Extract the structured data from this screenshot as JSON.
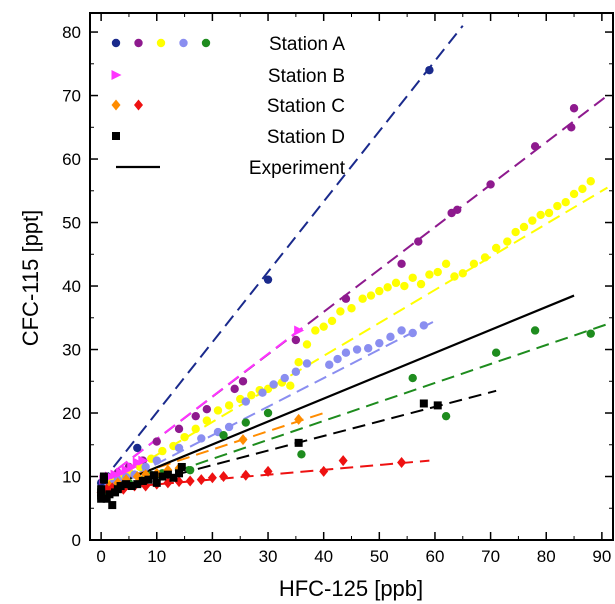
{
  "chart_data": {
    "type": "scatter",
    "xlabel": "HFC-125 [ppb]",
    "ylabel": "CFC-115 [ppt]",
    "xlim": [
      -2,
      92
    ],
    "ylim": [
      0,
      83
    ],
    "xticks": [
      0,
      10,
      20,
      30,
      40,
      50,
      60,
      70,
      80,
      90
    ],
    "yticks": [
      0,
      10,
      20,
      30,
      40,
      50,
      60,
      70,
      80
    ],
    "grid": false,
    "legend": {
      "placement": "top-left",
      "entries": [
        "Station A",
        "Station B",
        "Station C",
        "Station D",
        "Experiment"
      ]
    },
    "colors": {
      "navy": "#1a2a8c",
      "purple": "#8e1a8e",
      "yellow": "#ffff00",
      "lavender": "#8a8ef0",
      "green": "#1e8c1e",
      "magenta": "#ff33ff",
      "orange": "#ff8c00",
      "red": "#ee1111",
      "black": "#000000"
    },
    "series": [
      {
        "name": "Station A",
        "color": "navy",
        "marker": "circle",
        "points": [
          [
            0,
            9
          ],
          [
            0.5,
            8.5
          ],
          [
            1,
            9.5
          ],
          [
            6.5,
            14.5
          ],
          [
            30,
            41
          ],
          [
            59,
            74
          ]
        ],
        "fit": [
          [
            0,
            9
          ],
          [
            65,
            81
          ]
        ]
      },
      {
        "name": "Station A",
        "color": "purple",
        "marker": "circle",
        "points": [
          [
            1,
            9.5
          ],
          [
            2,
            9.8
          ],
          [
            3,
            10.6
          ],
          [
            5,
            11.5
          ],
          [
            7.5,
            12.5
          ],
          [
            10,
            15.5
          ],
          [
            14,
            17.5
          ],
          [
            17,
            19.5
          ],
          [
            19,
            20.6
          ],
          [
            24,
            23.8
          ],
          [
            25.5,
            25
          ],
          [
            35,
            31.5
          ],
          [
            44,
            38
          ],
          [
            54,
            43.5
          ],
          [
            57,
            47
          ],
          [
            63,
            51.5
          ],
          [
            64,
            52
          ],
          [
            70,
            56
          ],
          [
            78,
            62
          ],
          [
            84.5,
            65
          ],
          [
            85,
            68
          ]
        ],
        "fit": [
          [
            0,
            9.2
          ],
          [
            91,
            70
          ]
        ]
      },
      {
        "name": "Station A",
        "color": "yellow",
        "marker": "circle",
        "points": [
          [
            2,
            9.2
          ],
          [
            3.5,
            10
          ],
          [
            5,
            10.8
          ],
          [
            7,
            11.5
          ],
          [
            9,
            12.8
          ],
          [
            11,
            14
          ],
          [
            13,
            14.8
          ],
          [
            15,
            16.2
          ],
          [
            17,
            17.5
          ],
          [
            19,
            18.8
          ],
          [
            21,
            20.4
          ],
          [
            23,
            21.2
          ],
          [
            25,
            22.2
          ],
          [
            27,
            22.8
          ],
          [
            28.5,
            23.6
          ],
          [
            30,
            23.8
          ],
          [
            31,
            24.4
          ],
          [
            32.5,
            24.8
          ],
          [
            34,
            24.3
          ],
          [
            35.5,
            28
          ],
          [
            37,
            30.8
          ],
          [
            38.5,
            33
          ],
          [
            40,
            33.6
          ],
          [
            41.5,
            34.5
          ],
          [
            43,
            36
          ],
          [
            45,
            36.5
          ],
          [
            47,
            38
          ],
          [
            48.5,
            38.5
          ],
          [
            50,
            39.2
          ],
          [
            51.5,
            39.8
          ],
          [
            53,
            40.5
          ],
          [
            54.5,
            40
          ],
          [
            56,
            41.3
          ],
          [
            57.5,
            40.3
          ],
          [
            59,
            41.8
          ],
          [
            60.5,
            42.2
          ],
          [
            62,
            43.5
          ],
          [
            63.5,
            41.5
          ],
          [
            65,
            42
          ],
          [
            67,
            43.5
          ],
          [
            69,
            44.5
          ],
          [
            71,
            46
          ],
          [
            73,
            47
          ],
          [
            74.5,
            48.5
          ],
          [
            76,
            49.3
          ],
          [
            77.5,
            50.3
          ],
          [
            79,
            51.2
          ],
          [
            80.5,
            51.5
          ],
          [
            82,
            52.6
          ],
          [
            83.5,
            53.2
          ],
          [
            85,
            54.5
          ],
          [
            86.5,
            55.3
          ],
          [
            88,
            56.5
          ]
        ],
        "fit": [
          [
            0,
            8.2
          ],
          [
            91,
            55.5
          ]
        ]
      },
      {
        "name": "Station A",
        "color": "lavender",
        "marker": "circle",
        "points": [
          [
            1,
            8.2
          ],
          [
            2,
            8.8
          ],
          [
            3,
            9.5
          ],
          [
            4.5,
            9.9
          ],
          [
            6,
            10.3
          ],
          [
            8,
            11.5
          ],
          [
            10,
            12.5
          ],
          [
            14,
            14.5
          ],
          [
            18,
            16
          ],
          [
            21,
            17
          ],
          [
            23,
            17.8
          ],
          [
            26,
            21.8
          ],
          [
            29,
            23.2
          ],
          [
            31,
            24.5
          ],
          [
            33,
            25.5
          ],
          [
            35,
            26.5
          ],
          [
            37,
            27.8
          ],
          [
            41,
            27.6
          ],
          [
            42.5,
            28.5
          ],
          [
            44,
            29.5
          ],
          [
            46,
            30
          ],
          [
            48,
            30.2
          ],
          [
            50,
            31
          ],
          [
            52,
            32
          ],
          [
            54,
            33
          ],
          [
            56,
            32.6
          ],
          [
            58,
            33.8
          ]
        ],
        "fit": [
          [
            0,
            7.5
          ],
          [
            60,
            34.5
          ]
        ]
      },
      {
        "name": "Station A",
        "color": "green",
        "marker": "circle",
        "points": [
          [
            0,
            7
          ],
          [
            1,
            7.5
          ],
          [
            2,
            8.2
          ],
          [
            3.5,
            8.5
          ],
          [
            5,
            9
          ],
          [
            7,
            9.5
          ],
          [
            9,
            10.2
          ],
          [
            11,
            10.5
          ],
          [
            14,
            11
          ],
          [
            16,
            11
          ],
          [
            22,
            16.5
          ],
          [
            26,
            18.5
          ],
          [
            30,
            20
          ],
          [
            36,
            13.5
          ],
          [
            56,
            25.5
          ],
          [
            62,
            19.5
          ],
          [
            71,
            29.5
          ],
          [
            78,
            33
          ],
          [
            88,
            32.5
          ]
        ],
        "fit": [
          [
            0,
            6.8
          ],
          [
            91,
            34
          ]
        ]
      },
      {
        "name": "Station B",
        "color": "magenta",
        "marker": "triangle",
        "points": [
          [
            0.5,
            9.5
          ],
          [
            1.5,
            10
          ],
          [
            2.5,
            10.3
          ],
          [
            3.5,
            10.6
          ],
          [
            4.5,
            11
          ],
          [
            5.5,
            11.5
          ],
          [
            6.5,
            12.2
          ],
          [
            7.5,
            12.5
          ],
          [
            35.5,
            33
          ]
        ],
        "fit": [
          [
            0,
            9.2
          ],
          [
            37,
            34
          ]
        ]
      },
      {
        "name": "Station C",
        "color": "orange",
        "marker": "diamond",
        "points": [
          [
            1.5,
            8.5
          ],
          [
            3,
            9
          ],
          [
            4.5,
            9.5
          ],
          [
            6.5,
            10
          ],
          [
            8,
            10.3
          ],
          [
            10,
            10.5
          ],
          [
            12,
            11
          ],
          [
            14,
            11.3
          ],
          [
            25.5,
            15.8
          ],
          [
            35.5,
            19
          ]
        ],
        "fit": [
          [
            0,
            8.5
          ],
          [
            40,
            20
          ]
        ]
      },
      {
        "name": "Station C",
        "color": "red",
        "marker": "diamond",
        "points": [
          [
            0,
            7.5
          ],
          [
            1,
            8
          ],
          [
            2,
            8.2
          ],
          [
            4,
            8
          ],
          [
            6,
            8.5
          ],
          [
            8,
            8.5
          ],
          [
            10,
            8.8
          ],
          [
            12,
            9
          ],
          [
            14,
            9.2
          ],
          [
            16,
            9.3
          ],
          [
            18,
            9.5
          ],
          [
            20,
            9.8
          ],
          [
            22,
            10
          ],
          [
            26,
            10.2
          ],
          [
            30,
            10.8
          ],
          [
            40,
            10.8
          ],
          [
            43.5,
            12.5
          ],
          [
            54,
            12.2
          ]
        ],
        "fit": [
          [
            0,
            8
          ],
          [
            59,
            12.5
          ]
        ]
      },
      {
        "name": "Station D",
        "color": "black",
        "marker": "square",
        "points": [
          [
            0,
            6.5
          ],
          [
            0,
            7
          ],
          [
            0,
            7.5
          ],
          [
            0,
            8
          ],
          [
            0.5,
            9.5
          ],
          [
            0.5,
            10
          ],
          [
            1,
            6.5
          ],
          [
            1.5,
            7.2
          ],
          [
            2,
            5.5
          ],
          [
            2.5,
            7.5
          ],
          [
            3,
            8
          ],
          [
            3.5,
            8.5
          ],
          [
            4.5,
            8.8
          ],
          [
            5.5,
            8.5
          ],
          [
            6.5,
            8.8
          ],
          [
            7.5,
            9.3
          ],
          [
            8.5,
            9.5
          ],
          [
            9.5,
            10.2
          ],
          [
            10,
            9
          ],
          [
            11,
            10
          ],
          [
            12,
            10.3
          ],
          [
            13,
            9.8
          ],
          [
            14,
            10.5
          ],
          [
            14.5,
            11.5
          ],
          [
            35.5,
            15.3
          ],
          [
            58,
            21.5
          ],
          [
            60.5,
            21.2
          ]
        ],
        "fit": [
          [
            0,
            7.2
          ],
          [
            71,
            23.5
          ]
        ]
      },
      {
        "name": "Experiment",
        "color": "black",
        "marker": "none",
        "points": [],
        "line": [
          [
            1,
            8.2
          ],
          [
            85,
            38.5
          ]
        ]
      }
    ]
  }
}
